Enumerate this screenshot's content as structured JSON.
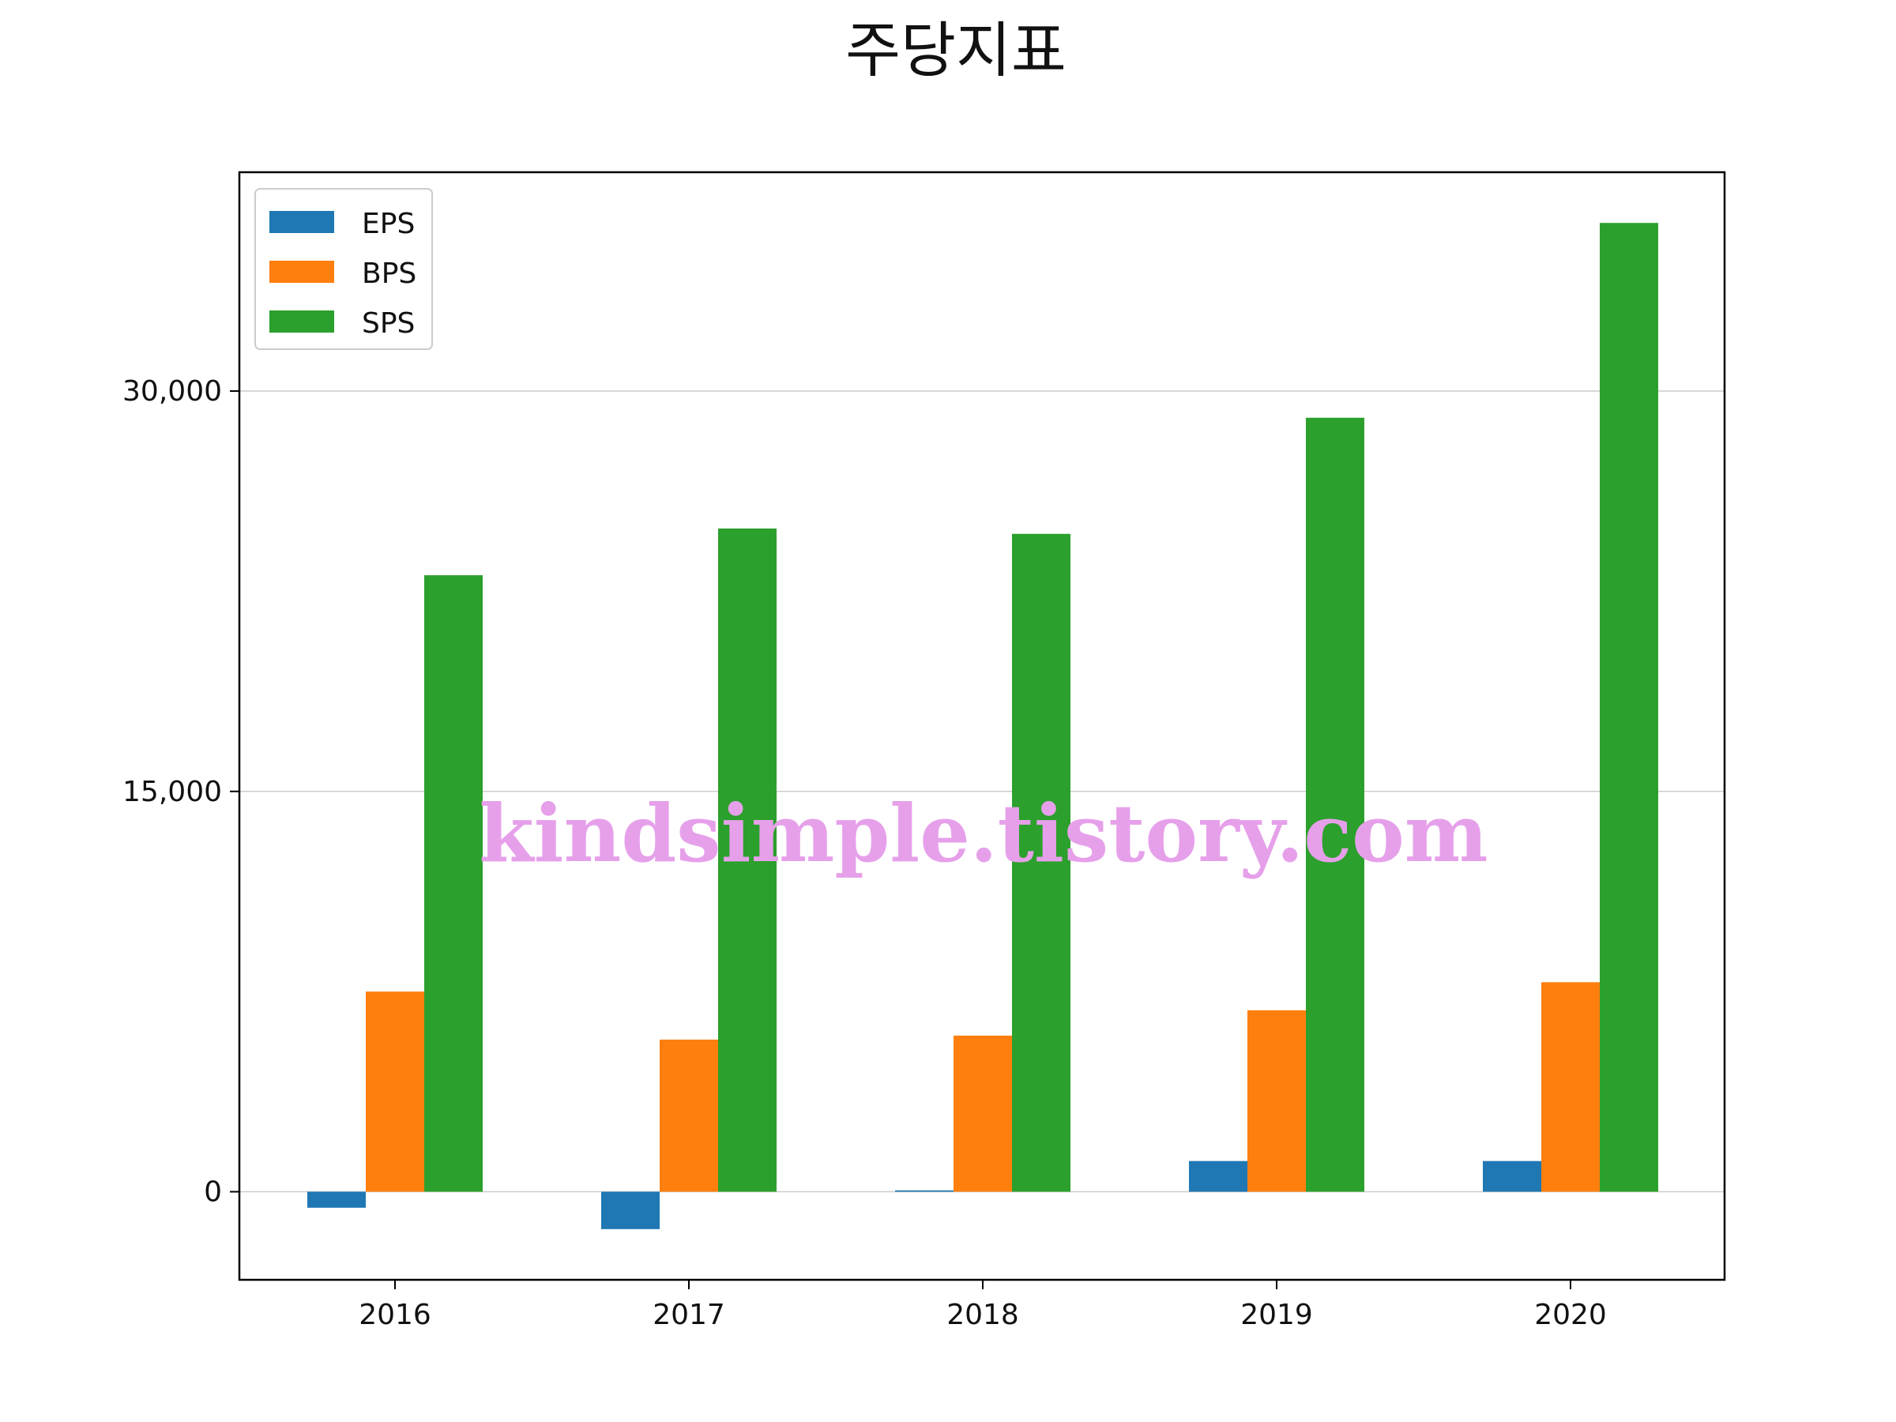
{
  "chart_data": {
    "type": "bar",
    "title": "주당지표",
    "categories": [
      "2016",
      "2017",
      "2018",
      "2019",
      "2020"
    ],
    "series": [
      {
        "name": "EPS",
        "color": "#1f77b4",
        "values": [
          -600,
          -1400,
          50,
          1150,
          1150
        ]
      },
      {
        "name": "BPS",
        "color": "#ff7f0e",
        "values": [
          7500,
          5700,
          5850,
          6800,
          7850
        ]
      },
      {
        "name": "SPS",
        "color": "#2ca02c",
        "values": [
          23100,
          24850,
          24650,
          29000,
          36300
        ]
      }
    ],
    "yticks": [
      0,
      15000,
      30000
    ],
    "ytick_labels": [
      "0",
      "15,000",
      "30,000"
    ],
    "ylim": [
      -3300,
      38200
    ],
    "grid": "horizontal",
    "legend": "top-left",
    "xlabel": "",
    "ylabel": ""
  },
  "watermark": "kindsimple.tistory.com"
}
